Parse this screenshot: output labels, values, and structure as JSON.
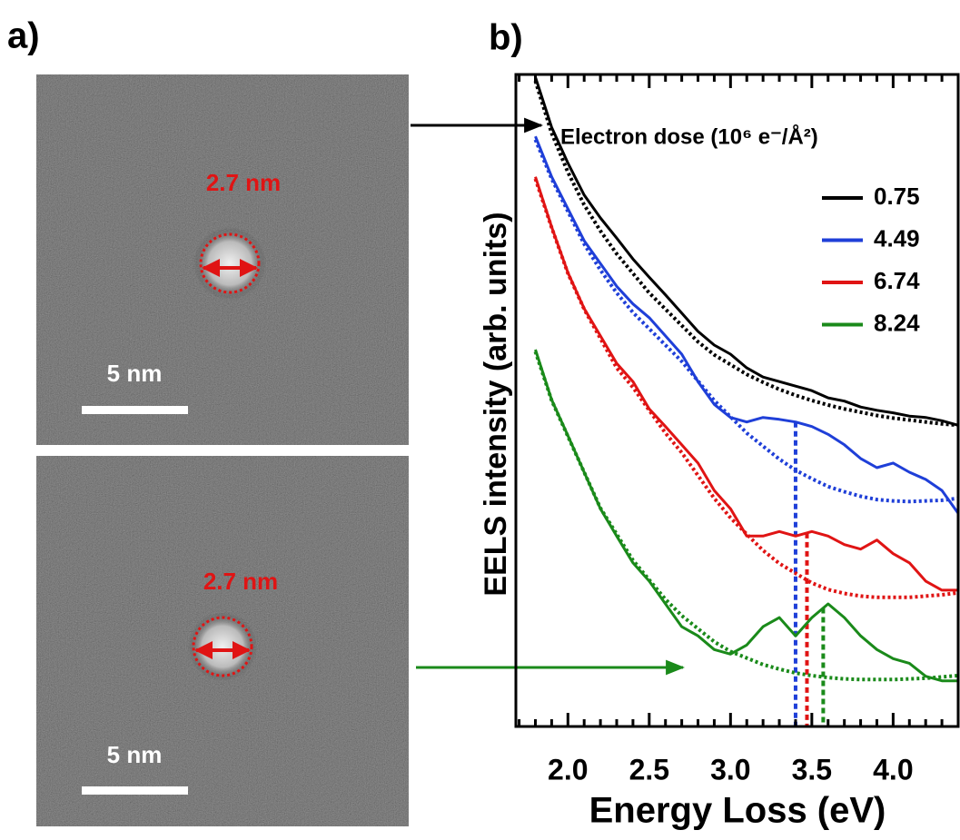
{
  "panel_labels": [
    "a)",
    "b)"
  ],
  "images": [
    {
      "size_label": "2.7 nm",
      "scale_label": "5 nm"
    },
    {
      "size_label": "2.7 nm",
      "scale_label": "5 nm"
    }
  ],
  "chart_data": {
    "type": "line",
    "xlabel": "Energy Loss (eV)",
    "ylabel": "EELS intensity (arb. units)",
    "legend_title": "Electron dose (10⁶ e⁻/Å²)",
    "legend": "upper right",
    "xlim": [
      1.68,
      4.4
    ],
    "ylim": [
      0,
      10
    ],
    "xticks": [
      {
        "value": 2,
        "label": "2.0"
      },
      2.5,
      {
        "value": 3,
        "label": "3.0"
      },
      3.5,
      {
        "value": 4,
        "label": "4.0"
      }
    ],
    "xminorticks": [
      1.7,
      1.8,
      1.9,
      2.1,
      2.2,
      2.3,
      2.4,
      2.6,
      2.7,
      2.8,
      2.9,
      3.1,
      3.2,
      3.3,
      3.4,
      3.6,
      3.7,
      3.8,
      3.9,
      4.1,
      4.2,
      4.3
    ],
    "x": [
      1.8,
      1.9,
      2.0,
      2.1,
      2.2,
      2.3,
      2.4,
      2.5,
      2.6,
      2.7,
      2.8,
      2.9,
      3.0,
      3.1,
      3.2,
      3.3,
      3.4,
      3.5,
      3.6,
      3.7,
      3.8,
      3.9,
      4.0,
      4.1,
      4.2,
      4.3,
      4.4
    ],
    "series": [
      {
        "name": "0.75",
        "color": "#000000",
        "values": [
          9.96,
          9.19,
          8.64,
          8.15,
          7.8,
          7.49,
          7.17,
          6.89,
          6.62,
          6.34,
          6.06,
          5.85,
          5.71,
          5.5,
          5.36,
          5.29,
          5.22,
          5.15,
          5.04,
          4.99,
          4.9,
          4.85,
          4.81,
          4.76,
          4.74,
          4.69,
          4.62
        ],
        "fit": [
          9.9,
          9.1,
          8.5,
          8.0,
          7.6,
          7.25,
          6.95,
          6.65,
          6.4,
          6.15,
          5.9,
          5.7,
          5.55,
          5.4,
          5.28,
          5.17,
          5.08,
          5.0,
          4.93,
          4.87,
          4.82,
          4.77,
          4.73,
          4.7,
          4.67,
          4.64,
          4.62
        ]
      },
      {
        "name": "4.49",
        "color": "#1f3fd8",
        "peak": 3.4,
        "values": [
          9.05,
          8.43,
          7.94,
          7.45,
          7.1,
          6.75,
          6.48,
          6.27,
          5.99,
          5.71,
          5.29,
          4.94,
          4.74,
          4.67,
          4.74,
          4.71,
          4.67,
          4.6,
          4.48,
          4.32,
          4.11,
          3.97,
          4.04,
          3.9,
          3.79,
          3.62,
          3.27
        ],
        "fit": [
          9.0,
          8.4,
          7.9,
          7.4,
          7.0,
          6.65,
          6.35,
          6.1,
          5.85,
          5.6,
          5.3,
          5.0,
          4.75,
          4.5,
          4.3,
          4.1,
          3.93,
          3.8,
          3.68,
          3.6,
          3.53,
          3.48,
          3.46,
          3.45,
          3.46,
          3.47,
          3.5
        ]
      },
      {
        "name": "6.74",
        "color": "#e01414",
        "peak": 3.47,
        "values": [
          8.43,
          7.66,
          6.96,
          6.41,
          5.99,
          5.57,
          5.29,
          4.87,
          4.6,
          4.32,
          4.04,
          3.62,
          3.34,
          2.92,
          2.92,
          2.99,
          2.92,
          2.99,
          2.92,
          2.79,
          2.72,
          2.86,
          2.65,
          2.51,
          2.23,
          2.09,
          2.09
        ],
        "fit": [
          8.4,
          7.65,
          6.95,
          6.4,
          5.95,
          5.5,
          5.2,
          4.85,
          4.5,
          4.2,
          3.85,
          3.5,
          3.2,
          2.95,
          2.7,
          2.5,
          2.35,
          2.2,
          2.1,
          2.04,
          2.0,
          1.98,
          1.98,
          1.98,
          2.0,
          2.02,
          2.05
        ]
      },
      {
        "name": "8.24",
        "color": "#1a8a1a",
        "peak": 3.57,
        "values": [
          5.78,
          5.01,
          4.46,
          3.9,
          3.34,
          2.92,
          2.51,
          2.23,
          1.88,
          1.53,
          1.39,
          1.18,
          1.11,
          1.25,
          1.53,
          1.67,
          1.39,
          1.67,
          1.88,
          1.67,
          1.39,
          1.18,
          1.04,
          0.97,
          0.77,
          0.7,
          0.7
        ],
        "fit": [
          5.75,
          5.0,
          4.45,
          3.9,
          3.35,
          2.95,
          2.55,
          2.25,
          1.95,
          1.7,
          1.5,
          1.3,
          1.15,
          1.05,
          0.95,
          0.88,
          0.82,
          0.78,
          0.75,
          0.73,
          0.72,
          0.72,
          0.72,
          0.73,
          0.74,
          0.76,
          0.78
        ]
      }
    ]
  }
}
